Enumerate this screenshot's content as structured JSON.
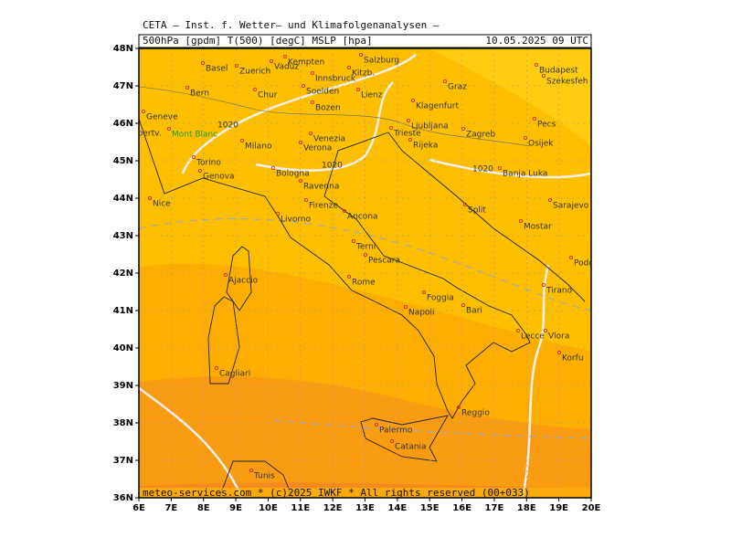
{
  "header": {
    "title": "CETA – Inst. f. Wetter– und Klimafolgenanalysen –",
    "params": "500hPa [gpdm] T(500) [degC] MSLP [hpa]",
    "date": "10.05.2025 09 UTC"
  },
  "axes": {
    "lat_labels": [
      "48N",
      "47N",
      "46N",
      "45N",
      "44N",
      "43N",
      "42N",
      "41N",
      "40N",
      "39N",
      "38N",
      "37N",
      "36N"
    ],
    "lon_labels": [
      "6E",
      "7E",
      "8E",
      "9E",
      "10E",
      "11E",
      "12E",
      "13E",
      "14E",
      "15E",
      "16E",
      "17E",
      "18E",
      "19E",
      "20E"
    ]
  },
  "cities": [
    {
      "name": "Basel"
    },
    {
      "name": "Zuerich"
    },
    {
      "name": "Vaduz"
    },
    {
      "name": "Kempten"
    },
    {
      "name": "Salzburg"
    },
    {
      "name": "Kitzb."
    },
    {
      "name": "Innsbruck"
    },
    {
      "name": "Soelden"
    },
    {
      "name": "Lienz"
    },
    {
      "name": "Bern"
    },
    {
      "name": "Chur"
    },
    {
      "name": "Graz"
    },
    {
      "name": "Budapest"
    },
    {
      "name": "Szekesfeh"
    },
    {
      "name": "Bozen"
    },
    {
      "name": "Klagenfurt"
    },
    {
      "name": "Ljubljana"
    },
    {
      "name": "Zagreb"
    },
    {
      "name": "Pecs"
    },
    {
      "name": "Geneve"
    },
    {
      "name": "Albertv."
    },
    {
      "name": "Mont Blanc"
    },
    {
      "name": "Milano"
    },
    {
      "name": "Verona"
    },
    {
      "name": "Venezia"
    },
    {
      "name": "Trieste"
    },
    {
      "name": "Rijeka"
    },
    {
      "name": "Osijek"
    },
    {
      "name": "Torino"
    },
    {
      "name": "Bologna"
    },
    {
      "name": "Banja Luka"
    },
    {
      "name": "Genova"
    },
    {
      "name": "Ravenna"
    },
    {
      "name": "Nice"
    },
    {
      "name": "Firenze"
    },
    {
      "name": "Split"
    },
    {
      "name": "Sarajevo"
    },
    {
      "name": "Livorno"
    },
    {
      "name": "Ancona"
    },
    {
      "name": "Mostar"
    },
    {
      "name": "Podgorica"
    },
    {
      "name": "Terni"
    },
    {
      "name": "Pescara"
    },
    {
      "name": "Ajaccio"
    },
    {
      "name": "Rome"
    },
    {
      "name": "Tirano"
    },
    {
      "name": "Foggia"
    },
    {
      "name": "Bari"
    },
    {
      "name": "Napoli"
    },
    {
      "name": "Lecce"
    },
    {
      "name": "Vlora"
    },
    {
      "name": "Korfu"
    },
    {
      "name": "Cagliari"
    },
    {
      "name": "Palermo"
    },
    {
      "name": "Reggio"
    },
    {
      "name": "Catania"
    },
    {
      "name": "Tunis"
    }
  ],
  "contour_labels": [
    "1020",
    "1020",
    "1020"
  ],
  "footer": "meteo-services.com * (c)2025 IWKF * All rights reserved (00+033)"
}
